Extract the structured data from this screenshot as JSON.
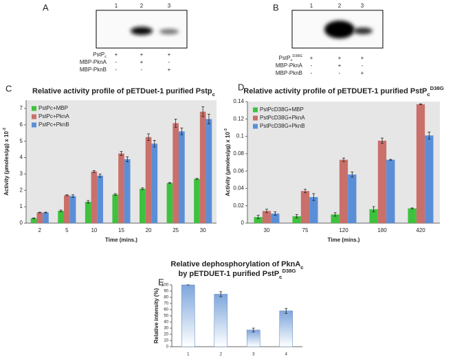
{
  "blots": [
    {
      "panel": "A",
      "lanes": [
        "1",
        "2",
        "3"
      ],
      "rows": [
        {
          "label": {
            "text": "PstP",
            "sub": "c"
          },
          "marks": [
            "+",
            "+",
            "+"
          ]
        },
        {
          "label": {
            "text": "MBP-PknA"
          },
          "marks": [
            "-",
            "+",
            "-"
          ]
        },
        {
          "label": {
            "text": "MBP-PknB"
          },
          "marks": [
            "-",
            "-",
            "+"
          ]
        }
      ]
    },
    {
      "panel": "B",
      "lanes": [
        "1",
        "2",
        "3"
      ],
      "rows": [
        {
          "label": {
            "text": "PstP",
            "sub": "c",
            "sup": "D38G"
          },
          "marks": [
            "+",
            "+",
            "+"
          ]
        },
        {
          "label": {
            "text": "MBP-PknA"
          },
          "marks": [
            "-",
            "+",
            "-"
          ]
        },
        {
          "label": {
            "text": "MBP-PknB"
          },
          "marks": [
            "-",
            "-",
            "+"
          ]
        }
      ]
    }
  ],
  "chart_data": [
    {
      "type": "bar",
      "panel": "C",
      "title": [
        {
          "text": "Relative activity profile of pETDuet-1 purified Pstp",
          "sub": "c"
        }
      ],
      "xlabel": "Time (mins.)",
      "ylabel": {
        "text": "Activity (µmoles/µg) x 10",
        "sup": "-3"
      },
      "categories": [
        "2",
        "5",
        "10",
        "15",
        "20",
        "25",
        "30"
      ],
      "series": [
        {
          "name": "PstPc+MBP",
          "color": "#3ec23e",
          "values": [
            0.3,
            0.75,
            1.3,
            1.75,
            2.1,
            2.45,
            2.7
          ],
          "errors": [
            0.02,
            0.05,
            0.08,
            0.05,
            0.05,
            0.03,
            0.03
          ]
        },
        {
          "name": "PstPc+PknA",
          "color": "#c9706b",
          "values": [
            0.65,
            1.7,
            3.15,
            4.25,
            5.25,
            6.1,
            6.8
          ],
          "errors": [
            0.02,
            0.03,
            0.06,
            0.12,
            0.2,
            0.25,
            0.3
          ]
        },
        {
          "name": "PstPc+PknB",
          "color": "#5a8fd8",
          "values": [
            0.65,
            1.65,
            2.9,
            3.9,
            4.85,
            5.6,
            6.35
          ],
          "errors": [
            0.02,
            0.08,
            0.1,
            0.15,
            0.2,
            0.2,
            0.3
          ]
        }
      ],
      "ylim": [
        0,
        7.5
      ],
      "yticks": [
        0,
        1,
        2,
        3,
        4,
        5,
        6,
        7
      ],
      "legend": "upper left",
      "background": "#e6e6e6"
    },
    {
      "type": "bar",
      "panel": "D",
      "title": [
        {
          "text": "Relative activity profile of pETDUET-1 purified PstP",
          "sub": "c",
          "sup": "D38G"
        }
      ],
      "xlabel": "Time (mins.)",
      "ylabel": {
        "text": "Activity (µmoles/µg) x 10",
        "sup": "-3"
      },
      "categories": [
        "30",
        "75",
        "120",
        "180",
        "420"
      ],
      "series": [
        {
          "name": "PstPcD38G+MBP",
          "color": "#3ec23e",
          "values": [
            0.007,
            0.008,
            0.01,
            0.016,
            0.017
          ],
          "errors": [
            0.002,
            0.002,
            0.002,
            0.003,
            0.0005
          ]
        },
        {
          "name": "PstPcD38G+PknA",
          "color": "#c9706b",
          "values": [
            0.014,
            0.037,
            0.073,
            0.095,
            0.137
          ],
          "errors": [
            0.002,
            0.002,
            0.002,
            0.003,
            0.0005
          ]
        },
        {
          "name": "PstPcD38G+PknB",
          "color": "#5a8fd8",
          "values": [
            0.011,
            0.03,
            0.056,
            0.073,
            0.101
          ],
          "errors": [
            0.002,
            0.004,
            0.003,
            0.0005,
            0.004
          ]
        }
      ],
      "ylim": [
        0,
        0.14
      ],
      "yticks": [
        0,
        0.02,
        0.04,
        0.06,
        0.08,
        0.1,
        0.12,
        0.14
      ],
      "legend": "upper left",
      "background": "#e6e6e6"
    },
    {
      "type": "bar",
      "panel": "E",
      "title": [
        {
          "text": "Relative dephosphorylation of PknA",
          "sub": "c"
        },
        {
          "text": "by pETDUET-1 purified PstP",
          "sub": "c",
          "sup": "D38G"
        }
      ],
      "ylabel": {
        "text": "Relative intensity (%)"
      },
      "categories": [
        "1",
        "2",
        "3",
        "4"
      ],
      "series": [
        {
          "color": "#7ea6dc",
          "values": [
            100,
            85,
            27,
            58
          ],
          "errors": [
            0,
            4,
            3,
            4
          ]
        }
      ],
      "ylim": [
        0,
        100
      ],
      "yticks": [
        0,
        10,
        20,
        30,
        40,
        50,
        60,
        70,
        80,
        90,
        100
      ],
      "background": "#ffffff"
    }
  ]
}
